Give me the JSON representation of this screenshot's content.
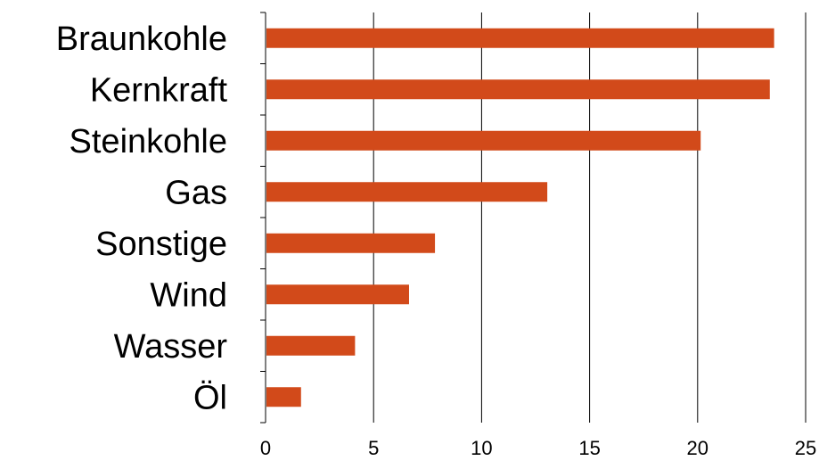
{
  "chart_data": {
    "type": "bar",
    "orientation": "horizontal",
    "categories": [
      "Braunkohle",
      "Kernkraft",
      "Steinkohle",
      "Gas",
      "Sonstige",
      "Wind",
      "Wasser",
      "Öl"
    ],
    "values": [
      23.5,
      23.3,
      20.1,
      13.0,
      7.8,
      6.6,
      4.1,
      1.6
    ],
    "xlim": [
      0,
      25
    ],
    "x_ticks": [
      "0",
      "5",
      "10",
      "15",
      "20",
      "25"
    ],
    "grid": "vertical",
    "legend": "none",
    "bar_color": "#d24a1a",
    "title": "",
    "xlabel": "",
    "ylabel": ""
  }
}
